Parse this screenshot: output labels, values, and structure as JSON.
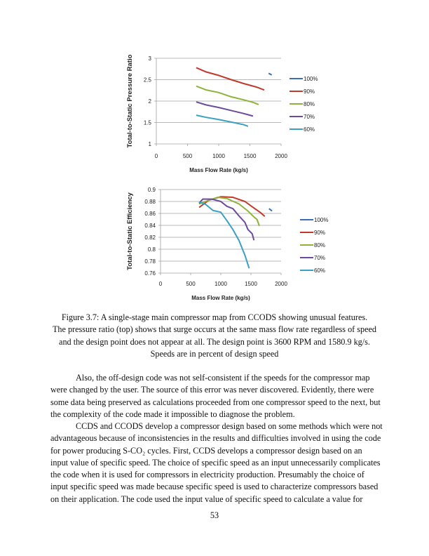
{
  "chart_data": [
    {
      "type": "line",
      "xlabel": "Mass Flow Rate (kg/s)",
      "ylabel": "Total-to-Static Pressure Ratio",
      "xlim": [
        0,
        2000
      ],
      "ylim": [
        1,
        3
      ],
      "xticks": [
        "0",
        "500",
        "1000",
        "1500",
        "2000"
      ],
      "yticks": [
        "1",
        "1.5",
        "2",
        "2.5",
        "3"
      ],
      "grid": "horizontal",
      "legend": "right",
      "series": [
        {
          "name": "100%",
          "color": "#3a6fb5",
          "x": [
            1800,
            1850
          ],
          "y": [
            2.65,
            2.61
          ]
        },
        {
          "name": "90%",
          "color": "#c0392b",
          "x": [
            640,
            800,
            1000,
            1200,
            1400,
            1600,
            1730
          ],
          "y": [
            2.78,
            2.68,
            2.6,
            2.5,
            2.41,
            2.33,
            2.26
          ]
        },
        {
          "name": "80%",
          "color": "#8db33a",
          "x": [
            640,
            800,
            1000,
            1200,
            1400,
            1550,
            1640
          ],
          "y": [
            2.35,
            2.26,
            2.2,
            2.1,
            2.03,
            1.97,
            1.92
          ]
        },
        {
          "name": "70%",
          "color": "#6c4a9c",
          "x": [
            640,
            800,
            1000,
            1200,
            1400,
            1500,
            1550
          ],
          "y": [
            1.98,
            1.91,
            1.85,
            1.78,
            1.71,
            1.67,
            1.65
          ]
        },
        {
          "name": "60%",
          "color": "#3aa0c4",
          "x": [
            640,
            800,
            1000,
            1200,
            1400,
            1470
          ],
          "y": [
            1.67,
            1.62,
            1.57,
            1.51,
            1.45,
            1.41
          ]
        }
      ]
    },
    {
      "type": "line",
      "xlabel": "Mass Flow Rate (kg/s)",
      "ylabel": "Total-to-Static Efficiency",
      "xlim": [
        0,
        2000
      ],
      "ylim": [
        0.76,
        0.9
      ],
      "xticks": [
        "0",
        "500",
        "1000",
        "1500",
        "2000"
      ],
      "yticks": [
        "0.76",
        "0.78",
        "0.8",
        "0.82",
        "0.84",
        "0.86",
        "0.88",
        "0.9"
      ],
      "grid": "horizontal",
      "legend": "right",
      "series": [
        {
          "name": "100%",
          "color": "#3a6fb5",
          "x": [
            1800,
            1850
          ],
          "y": [
            0.868,
            0.864
          ]
        },
        {
          "name": "90%",
          "color": "#c0392b",
          "x": [
            640,
            800,
            1000,
            1200,
            1400,
            1550,
            1650,
            1730
          ],
          "y": [
            0.87,
            0.882,
            0.888,
            0.887,
            0.88,
            0.869,
            0.862,
            0.855
          ]
        },
        {
          "name": "80%",
          "color": "#8db33a",
          "x": [
            640,
            800,
            950,
            1100,
            1300,
            1450,
            1550,
            1600,
            1640
          ],
          "y": [
            0.876,
            0.882,
            0.887,
            0.885,
            0.876,
            0.864,
            0.854,
            0.85,
            0.839
          ]
        },
        {
          "name": "70%",
          "color": "#6c4a9c",
          "x": [
            640,
            700,
            850,
            1000,
            1100,
            1200,
            1300,
            1400,
            1450,
            1520,
            1550
          ],
          "y": [
            0.877,
            0.884,
            0.884,
            0.88,
            0.872,
            0.868,
            0.856,
            0.845,
            0.833,
            0.826,
            0.815
          ]
        },
        {
          "name": "60%",
          "color": "#3aa0c4",
          "x": [
            640,
            750,
            870,
            1000,
            1100,
            1200,
            1300,
            1400,
            1470
          ],
          "y": [
            0.879,
            0.875,
            0.865,
            0.862,
            0.848,
            0.833,
            0.815,
            0.79,
            0.768
          ]
        }
      ]
    }
  ],
  "caption": [
    "Figure 3.7: A single-stage main compressor map from CCODS showing unusual features.",
    "The pressure ratio (top) shows that surge occurs at the same mass flow rate regardless of speed",
    "and the design point does not appear at all.  The design point is 3600 RPM and 1580.9 kg/s.",
    "Speeds are in percent of design speed"
  ],
  "body": [
    "Also, the off-design code was not self-consistent if the speeds for the compressor map",
    "were changed by the user.  The source of this error was never discovered.  Evidently, there were",
    "some data being preserved as calculations proceeded from one compressor speed to the next, but",
    "the complexity of the code made it impossible to diagnose the problem.",
    "CCDS and CCODS develop a compressor design based on some methods which were not",
    "advantageous because of inconsistencies in the results and difficulties involved in using the code",
    "for power producing S-CO₂ cycles.  First, CCDS develops a compressor design based on an",
    "input value of specific speed.  The choice of specific speed as an input unnecessarily complicates",
    "the code when it is used for compressors in electricity production.  Presumably the choice of",
    "input specific speed was made because specific speed is used to characterize compressors based",
    "on their application.  The code used the input value of specific speed to calculate a value for"
  ],
  "page_number": "53"
}
